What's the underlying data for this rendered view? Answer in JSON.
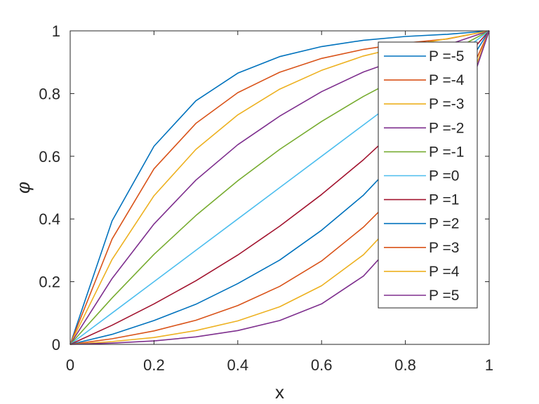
{
  "chart_data": {
    "type": "line",
    "xlabel": "x",
    "ylabel": "φ",
    "xlim": [
      0,
      1
    ],
    "ylim": [
      0,
      1
    ],
    "xticks": [
      "0",
      "0.2",
      "0.4",
      "0.6",
      "0.8",
      "1"
    ],
    "yticks": [
      "0",
      "0.2",
      "0.4",
      "0.6",
      "0.8",
      "1"
    ],
    "grid": false,
    "legend_position": "top-right",
    "x": [
      0,
      0.1,
      0.2,
      0.3,
      0.4,
      0.5,
      0.6,
      0.7,
      0.8,
      0.9,
      1
    ],
    "series": [
      {
        "name": "P =-5",
        "color": "#0072BD",
        "values": [
          0,
          0.394,
          0.632,
          0.777,
          0.865,
          0.918,
          0.95,
          0.97,
          0.982,
          0.989,
          1
        ]
      },
      {
        "name": "P =-4",
        "color": "#D95319",
        "values": [
          0,
          0.336,
          0.56,
          0.705,
          0.803,
          0.868,
          0.912,
          0.941,
          0.961,
          0.974,
          1
        ]
      },
      {
        "name": "P =-3",
        "color": "#EDB120",
        "values": [
          0,
          0.271,
          0.474,
          0.622,
          0.732,
          0.814,
          0.874,
          0.92,
          0.952,
          0.975,
          1
        ]
      },
      {
        "name": "P =-2",
        "color": "#7E2F8E",
        "values": [
          0,
          0.21,
          0.384,
          0.524,
          0.637,
          0.728,
          0.806,
          0.869,
          0.916,
          0.955,
          1
        ]
      },
      {
        "name": "P =-1",
        "color": "#77AC30",
        "values": [
          0,
          0.148,
          0.287,
          0.411,
          0.522,
          0.622,
          0.711,
          0.791,
          0.861,
          0.929,
          1
        ]
      },
      {
        "name": "P =0",
        "color": "#4DBEEE",
        "values": [
          0,
          0.1,
          0.2,
          0.3,
          0.4,
          0.5,
          0.6,
          0.7,
          0.8,
          0.9,
          1
        ]
      },
      {
        "name": "P =1",
        "color": "#A2142F",
        "values": [
          0,
          0.061,
          0.129,
          0.203,
          0.285,
          0.377,
          0.478,
          0.589,
          0.713,
          0.849,
          1
        ]
      },
      {
        "name": "P =2",
        "color": "#0072BD",
        "values": [
          0,
          0.032,
          0.076,
          0.128,
          0.194,
          0.269,
          0.364,
          0.476,
          0.617,
          0.789,
          1
        ]
      },
      {
        "name": "P =3",
        "color": "#D95319",
        "values": [
          0,
          0.018,
          0.043,
          0.077,
          0.124,
          0.185,
          0.266,
          0.374,
          0.508,
          0.704,
          1
        ]
      },
      {
        "name": "P =4",
        "color": "#EDB120",
        "values": [
          0,
          0.009,
          0.022,
          0.044,
          0.075,
          0.12,
          0.187,
          0.286,
          0.428,
          0.646,
          1
        ]
      },
      {
        "name": "P =5",
        "color": "#7E2F8E",
        "values": [
          0,
          0.004,
          0.011,
          0.024,
          0.044,
          0.076,
          0.129,
          0.218,
          0.365,
          0.605,
          1
        ]
      }
    ]
  }
}
